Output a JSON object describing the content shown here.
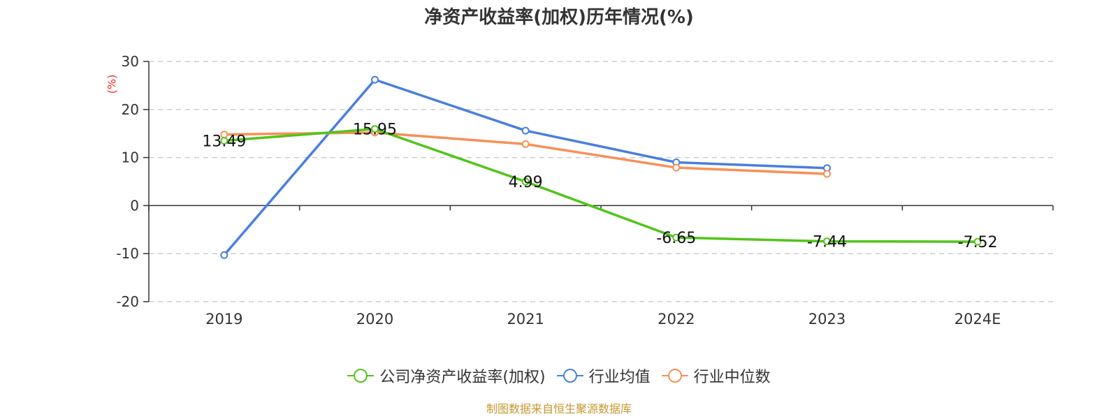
{
  "title": "净资产收益率(加权)历年情况(%)",
  "source": "制图数据来自恒生聚源数据库",
  "chart_data": {
    "type": "line",
    "title": "净资产收益率(加权)历年情况(%)",
    "ylabel": "(%)",
    "xlabel": "",
    "categories": [
      "2019",
      "2020",
      "2021",
      "2022",
      "2023",
      "2024E"
    ],
    "ylim": [
      -20,
      30
    ],
    "yticks": [
      30,
      20,
      10,
      0,
      -10,
      -20
    ],
    "grid": true,
    "legend_position": "bottom",
    "series": [
      {
        "name": "公司净资产收益率(加权)",
        "color": "#52c41a",
        "values": [
          13.49,
          15.95,
          4.99,
          -6.65,
          -7.44,
          -7.52
        ],
        "labels": [
          "13.49",
          "15.95",
          "4.99",
          "-6.65",
          "-7.44",
          "-7.52"
        ]
      },
      {
        "name": "行业均值",
        "color": "#4a7fdc",
        "values": [
          -10.3,
          26.2,
          15.6,
          9.0,
          7.8,
          null
        ]
      },
      {
        "name": "行业中位数",
        "color": "#f79056",
        "values": [
          14.8,
          15.2,
          12.8,
          7.9,
          6.6,
          null
        ]
      }
    ]
  }
}
